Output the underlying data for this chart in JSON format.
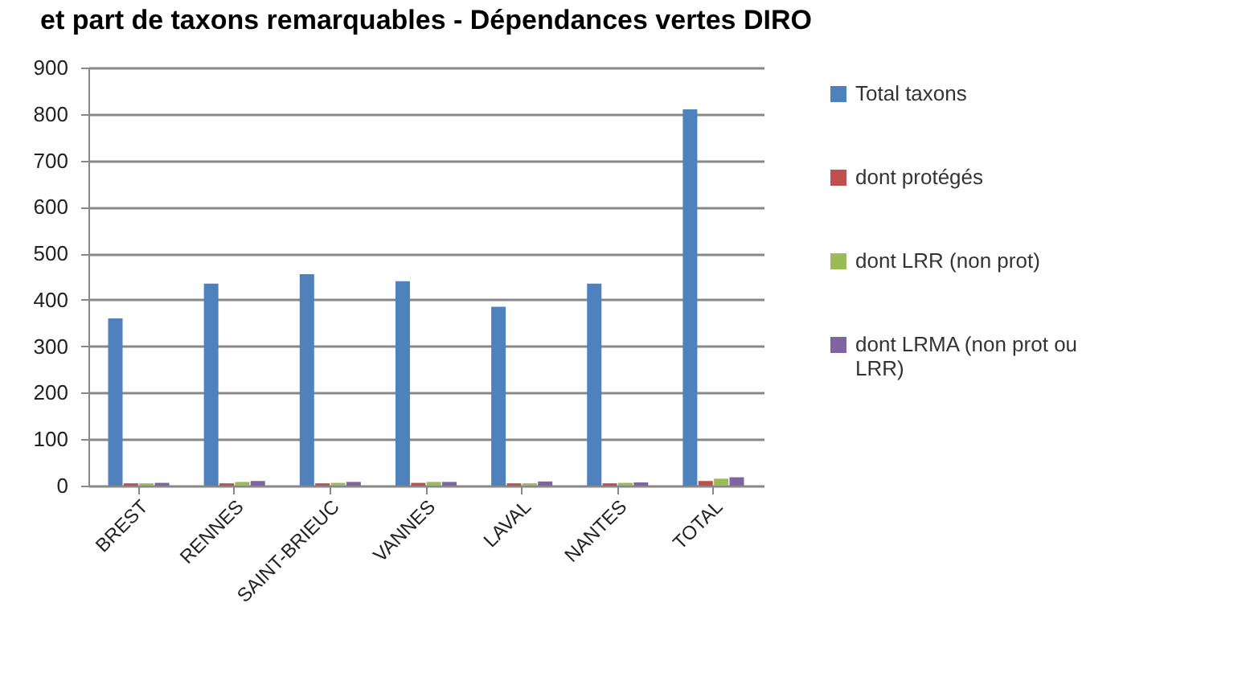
{
  "chart_data": {
    "type": "bar",
    "title": "et part de taxons remarquables - Dépendances vertes DIRO",
    "categories": [
      "BREST",
      "RENNES",
      "SAINT-BRIEUC",
      "VANNES",
      "LAVAL",
      "NANTES",
      "TOTAL"
    ],
    "series": [
      {
        "name": "Total taxons",
        "color": "#4f81bd",
        "values": [
          360,
          435,
          455,
          440,
          385,
          435,
          810
        ]
      },
      {
        "name": "dont protégés",
        "color": "#c0504d",
        "values": [
          5,
          5,
          5,
          6,
          5,
          5,
          10
        ]
      },
      {
        "name": "dont LRR (non prot)",
        "color": "#9bbb59",
        "values": [
          5,
          8,
          6,
          8,
          5,
          6,
          15
        ]
      },
      {
        "name": "dont LRMA (non prot ou LRR)",
        "color": "#8064a2",
        "values": [
          6,
          10,
          8,
          8,
          9,
          7,
          18
        ]
      }
    ],
    "ylim": [
      0,
      900
    ],
    "yticks": [
      0,
      100,
      200,
      300,
      400,
      500,
      600,
      700,
      800,
      900
    ],
    "grid": "y",
    "legend": "right"
  }
}
